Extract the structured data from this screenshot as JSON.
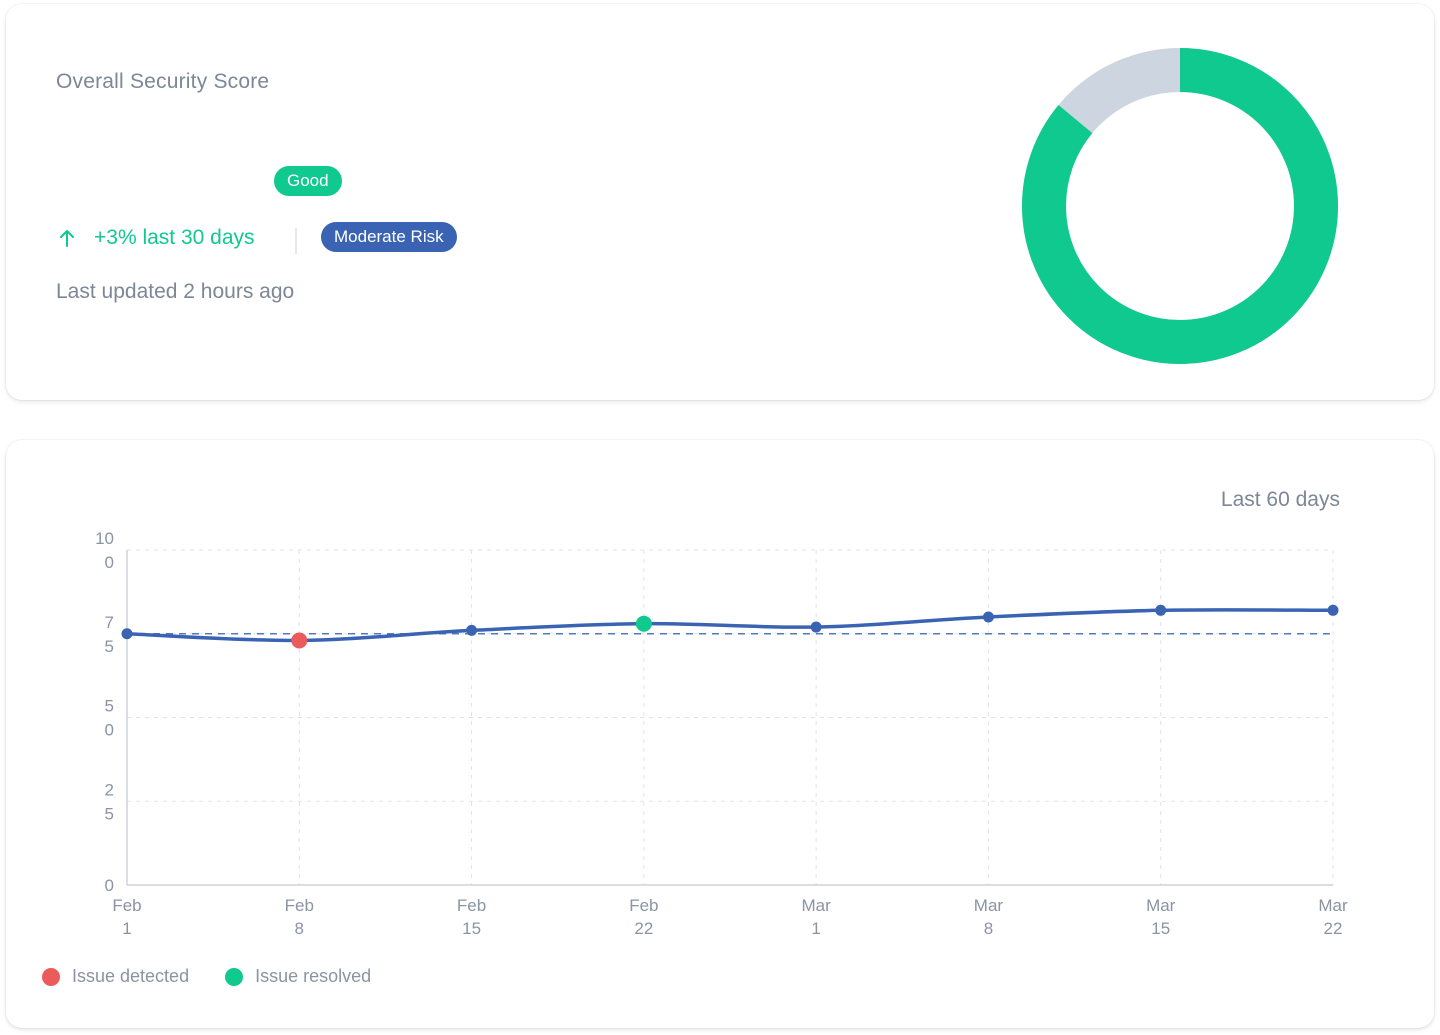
{
  "score": {
    "title": "Overall Security Score",
    "status_badge": "Good",
    "trend_text": "+3% last 30 days",
    "trend_icon": "arrow-up-icon",
    "risk_badge": "Moderate Risk",
    "updated_text": "Last updated 2 hours ago",
    "score_fraction": 0.86
  },
  "colors": {
    "good": "#10c98f",
    "risk": "#3a64b3",
    "line": "#3a64b3",
    "track": "#cdd5e0",
    "detected": "#ec5b5b",
    "resolved": "#10c98f",
    "muted_text": "#7c8797"
  },
  "trend": {
    "range_label": "Last 60 days",
    "legend": [
      {
        "label": "Issue detected",
        "color": "#ec5b5b"
      },
      {
        "label": "Issue resolved",
        "color": "#10c98f"
      }
    ]
  },
  "chart_data": {
    "type": "line",
    "title": "",
    "xlabel": "",
    "ylabel": "",
    "x": [
      [
        "Feb",
        "1"
      ],
      [
        "Feb",
        "8"
      ],
      [
        "Feb",
        "15"
      ],
      [
        "Feb",
        "22"
      ],
      [
        "Mar",
        "1"
      ],
      [
        "Mar",
        "8"
      ],
      [
        "Mar",
        "15"
      ],
      [
        "Mar",
        "22"
      ]
    ],
    "series": [
      {
        "values": [
          75,
          73,
          76,
          78,
          77,
          80,
          82,
          82
        ]
      }
    ],
    "markers": [
      {
        "index": 1,
        "kind": "Issue detected"
      },
      {
        "index": 3,
        "kind": "Issue resolved"
      }
    ],
    "reference_line": 75,
    "ylim": [
      0,
      100
    ],
    "y_ticks": [
      [
        "10",
        "0"
      ],
      [
        "7",
        "5"
      ],
      [
        "5",
        "0"
      ],
      [
        "2",
        "5"
      ],
      [
        "0"
      ]
    ],
    "y_tick_values": [
      100,
      75,
      50,
      25,
      0
    ],
    "grid": true
  }
}
